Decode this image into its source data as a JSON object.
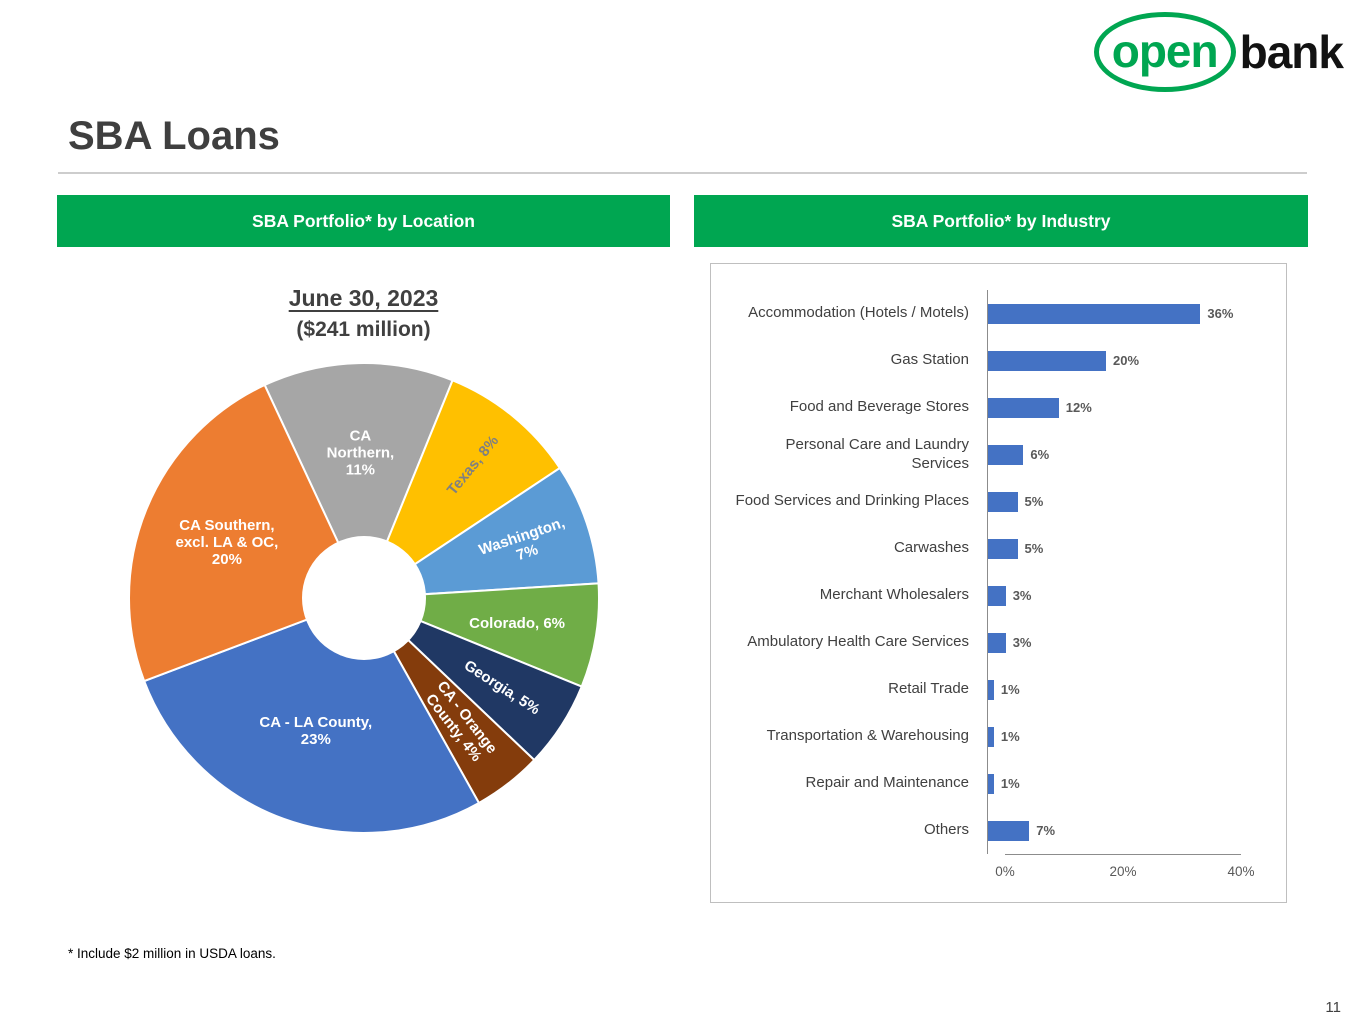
{
  "logo": {
    "part1": "open",
    "part2": "bank",
    "green": "#00A651"
  },
  "page": {
    "title": "SBA Loans",
    "footnote": "* Include $2 million in USDA loans.",
    "page_number": "11"
  },
  "panels": {
    "location": {
      "header": "SBA Portfolio* by Location"
    },
    "industry": {
      "header": "SBA Portfolio* by Industry"
    }
  },
  "chart_data": [
    {
      "type": "pie",
      "donut": true,
      "title": "June 30, 2023",
      "subtitle": "($241 million)",
      "start_angle_deg": -25,
      "slices": [
        {
          "label": "CA Northern",
          "value": 11,
          "color": "#A6A6A6",
          "text_color": "#FFFFFF",
          "label_lines": [
            "CA",
            "Northern,",
            "11%"
          ],
          "label_r": 0.62,
          "rotate_label": false
        },
        {
          "label": "Texas",
          "value": 8,
          "color": "#FFC000",
          "text_color": "#808080",
          "label_lines": [
            "Texas, 8%"
          ],
          "label_r": 0.73,
          "rotate_label": true
        },
        {
          "label": "Washington",
          "value": 7,
          "color": "#5B9BD5",
          "text_color": "#FFFFFF",
          "label_lines": [
            "Washington,",
            "7%"
          ],
          "label_r": 0.72,
          "rotate_label": true
        },
        {
          "label": "Colorado",
          "value": 6,
          "color": "#70AD47",
          "text_color": "#FFFFFF",
          "label_lines": [
            "Colorado, 6%"
          ],
          "label_r": 0.66,
          "rotate_label": false
        },
        {
          "label": "Georgia",
          "value": 5,
          "color": "#203864",
          "text_color": "#FFFFFF",
          "label_lines": [
            "Georgia, 5%"
          ],
          "label_r": 0.7,
          "rotate_label": true
        },
        {
          "label": "CA - Orange County",
          "value": 4,
          "color": "#843C0C",
          "text_color": "#FFFFFF",
          "label_lines": [
            "CA - Orange",
            "County, 4%"
          ],
          "label_r": 0.67,
          "rotate_label": true
        },
        {
          "label": "CA - LA County",
          "value": 23,
          "color": "#4472C4",
          "text_color": "#FFFFFF",
          "label_lines": [
            "CA - LA County,",
            "23%"
          ],
          "label_r": 0.6,
          "rotate_label": false
        },
        {
          "label": "CA Southern, excl. LA & OC",
          "value": 20,
          "color": "#ED7D31",
          "text_color": "#FFFFFF",
          "label_lines": [
            "CA Southern,",
            "excl. LA & OC,",
            "20%"
          ],
          "label_r": 0.63,
          "rotate_label": false
        }
      ]
    },
    {
      "type": "bar",
      "orientation": "horizontal",
      "bar_color": "#4472C4",
      "xlim": [
        0,
        40
      ],
      "xticks": [
        {
          "value": 0,
          "label": "0%"
        },
        {
          "value": 20,
          "label": "20%"
        },
        {
          "value": 40,
          "label": "40%"
        }
      ],
      "categories": [
        "Accommodation (Hotels / Motels)",
        "Gas Station",
        "Food and Beverage Stores",
        "Personal Care and Laundry Services",
        "Food Services and Drinking Places",
        "Carwashes",
        "Merchant Wholesalers",
        "Ambulatory Health Care Services",
        "Retail Trade",
        "Transportation & Warehousing",
        "Repair and Maintenance",
        "Others"
      ],
      "values": [
        36,
        20,
        12,
        6,
        5,
        5,
        3,
        3,
        1,
        1,
        1,
        7
      ],
      "value_labels": [
        "36%",
        "20%",
        "12%",
        "6%",
        "5%",
        "5%",
        "3%",
        "3%",
        "1%",
        "1%",
        "1%",
        "7%"
      ]
    }
  ]
}
